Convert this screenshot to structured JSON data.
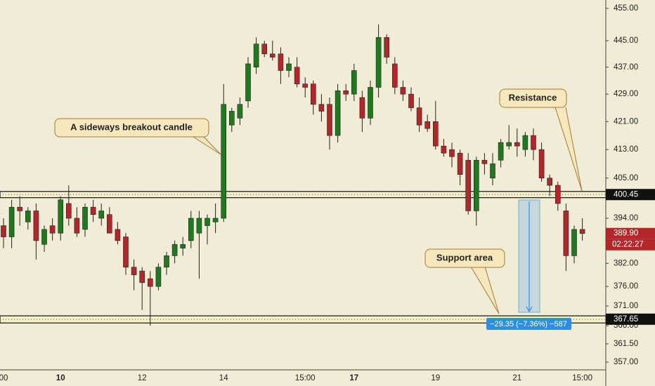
{
  "chart_data": {
    "type": "candlestick",
    "log_scale": true,
    "ylim": [
      355.1,
      457.6
    ],
    "yticks": [
      {
        "value": 455,
        "label": "455.00"
      },
      {
        "value": 445,
        "label": "445.00"
      },
      {
        "value": 437,
        "label": "437.00"
      },
      {
        "value": 429,
        "label": "429.00"
      },
      {
        "value": 421,
        "label": "421.00"
      },
      {
        "value": 413,
        "label": "413.00"
      },
      {
        "value": 405,
        "label": "405.00"
      },
      {
        "value": 394,
        "label": "394.00"
      },
      {
        "value": 382,
        "label": "382.00"
      },
      {
        "value": 376,
        "label": "376.00"
      },
      {
        "value": 371,
        "label": "371.00"
      },
      {
        "value": 366,
        "label": "366.00"
      },
      {
        "value": 361.5,
        "label": "361.50"
      },
      {
        "value": 357,
        "label": "357.00"
      }
    ],
    "categories": [
      "00",
      null,
      null,
      null,
      null,
      null,
      null,
      "10",
      null,
      null,
      null,
      null,
      null,
      null,
      null,
      null,
      null,
      "12",
      null,
      null,
      null,
      null,
      null,
      null,
      null,
      null,
      null,
      "14",
      null,
      null,
      null,
      null,
      null,
      null,
      null,
      null,
      null,
      "15:00",
      null,
      null,
      null,
      null,
      null,
      "17",
      null,
      null,
      null,
      null,
      null,
      null,
      null,
      null,
      null,
      "19",
      null,
      null,
      null,
      null,
      null,
      null,
      null,
      null,
      null,
      "21",
      null,
      null,
      null,
      null,
      null,
      null,
      null,
      "15:00"
    ],
    "bold_categories": [
      "10",
      "17"
    ],
    "up_color": "#1f7a1f",
    "down_color": "#b3262a",
    "series": {
      "open": [
        392,
        389,
        397,
        393,
        396,
        387,
        392,
        390,
        398,
        394,
        391,
        397,
        394,
        395,
        391,
        389,
        381,
        380,
        378,
        376,
        381,
        384,
        386,
        388,
        390,
        392,
        393,
        394,
        420,
        422,
        427,
        437,
        444,
        441,
        441,
        436,
        437,
        432,
        432,
        426,
        426,
        417,
        430,
        429,
        428,
        422,
        431,
        446,
        438,
        431,
        429,
        425,
        421,
        421,
        414,
        413,
        412,
        410,
        396,
        410,
        405,
        410,
        414,
        415,
        413,
        417,
        413,
        405,
        403,
        396,
        384,
        391
      ],
      "high": [
        394,
        399,
        400,
        397,
        398,
        392,
        394,
        400,
        403,
        397,
        398,
        399,
        398,
        397,
        393,
        390,
        383,
        381,
        380,
        382,
        385,
        388,
        389,
        396,
        396,
        395,
        398,
        432,
        425,
        428,
        440,
        446,
        445,
        445,
        443,
        440,
        440,
        434,
        433,
        429,
        428,
        432,
        432,
        438,
        430,
        433,
        450,
        447,
        440,
        433,
        431,
        428,
        423,
        427,
        416,
        415,
        413,
        412,
        411,
        412,
        412,
        416,
        420,
        419,
        418,
        419,
        415,
        406,
        404,
        398,
        392,
        394
      ],
      "low": [
        386,
        386,
        392,
        391,
        383,
        385,
        388,
        388,
        392,
        389,
        389,
        393,
        392,
        390,
        387,
        379,
        375,
        370,
        366,
        375,
        379,
        382,
        384,
        386,
        378,
        387,
        390,
        393,
        418,
        420,
        425,
        435,
        440,
        439,
        432,
        434,
        431,
        428,
        423,
        421,
        413,
        415,
        427,
        427,
        418,
        420,
        428,
        438,
        429,
        427,
        424,
        418,
        418,
        413,
        411,
        408,
        403,
        395,
        392,
        406,
        403,
        408,
        413,
        411,
        411,
        410,
        404,
        400,
        396,
        380,
        382,
        388
      ],
      "close": [
        389,
        397,
        396,
        396,
        388,
        391,
        390,
        399,
        394,
        390,
        397,
        395,
        396,
        390,
        388,
        381,
        379,
        377,
        376,
        381,
        384,
        387,
        387,
        394,
        394,
        394,
        394,
        426,
        424,
        426,
        438,
        444,
        441,
        440,
        436,
        438,
        432,
        431,
        426,
        424,
        417,
        430,
        429,
        436,
        422,
        431,
        446,
        440,
        431,
        429,
        425,
        420,
        419,
        414,
        412,
        411,
        406,
        396,
        410,
        409,
        409,
        415,
        415,
        414,
        417,
        413,
        405,
        403,
        398,
        384,
        391,
        389.9
      ]
    },
    "zones": [
      {
        "from": 399.6,
        "to": 401.3
      },
      {
        "from": 366.7,
        "to": 368.5
      }
    ],
    "price_labels": [
      {
        "value": 400.45,
        "label": "400.45",
        "color": "#111111"
      },
      {
        "value": 389.9,
        "label": "389.90",
        "color": "#b3262a"
      },
      {
        "value": 367.65,
        "label": "367.65",
        "color": "#111111"
      }
    ],
    "countdown": "02:22:27",
    "annotations": [
      "A sideways breakout candle",
      "Resistance",
      "Support area"
    ],
    "measure_label": "−29.35 (−7.36%) −587"
  }
}
